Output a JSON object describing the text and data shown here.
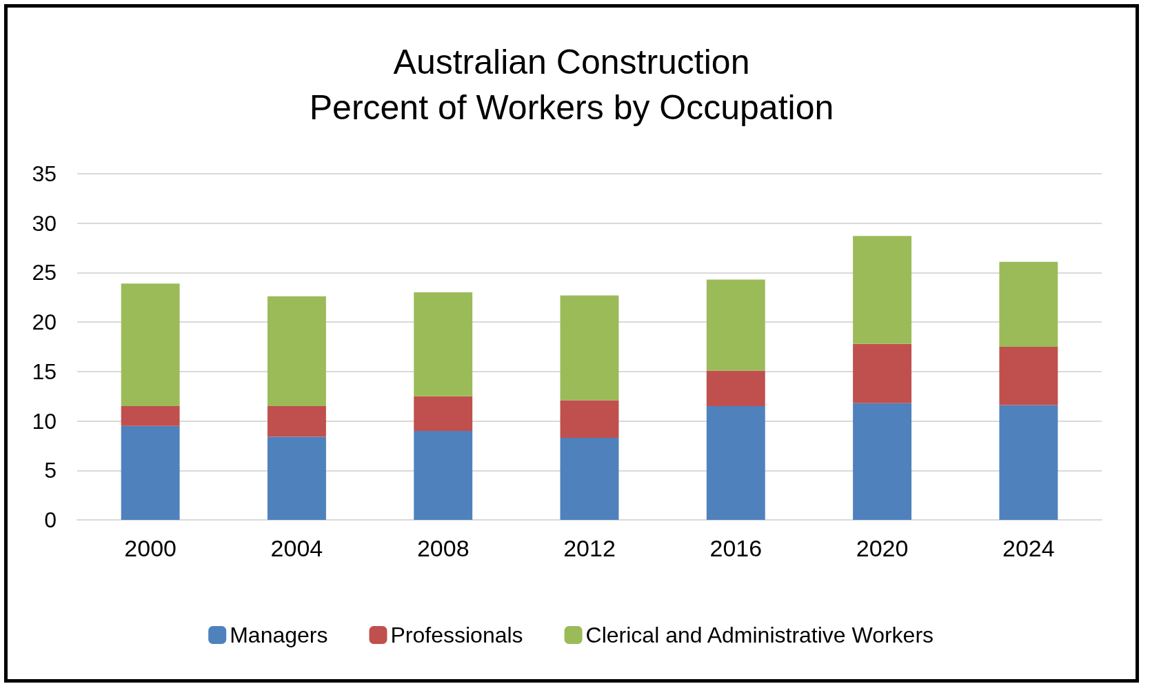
{
  "chart_data": {
    "type": "bar",
    "title": "Australian Construction\nPercent of Workers by Occupation",
    "categories": [
      "2000",
      "2004",
      "2008",
      "2012",
      "2016",
      "2020",
      "2024"
    ],
    "series": [
      {
        "name": "Managers",
        "color": "#4f81bd",
        "values": [
          9.5,
          8.4,
          9.0,
          8.3,
          11.5,
          11.8,
          11.6
        ]
      },
      {
        "name": "Professionals",
        "color": "#c0504d",
        "values": [
          2.0,
          3.1,
          3.5,
          3.8,
          3.6,
          6.0,
          5.9
        ]
      },
      {
        "name": "Clerical and Administrative Workers",
        "color": "#9bbb59",
        "values": [
          12.4,
          11.1,
          10.5,
          10.6,
          9.2,
          10.9,
          8.6
        ]
      }
    ],
    "stacked": true,
    "ylim": [
      0,
      35
    ],
    "yticks": [
      0,
      5,
      10,
      15,
      20,
      25,
      30,
      35
    ],
    "grid": "y",
    "legend": "bottom"
  }
}
